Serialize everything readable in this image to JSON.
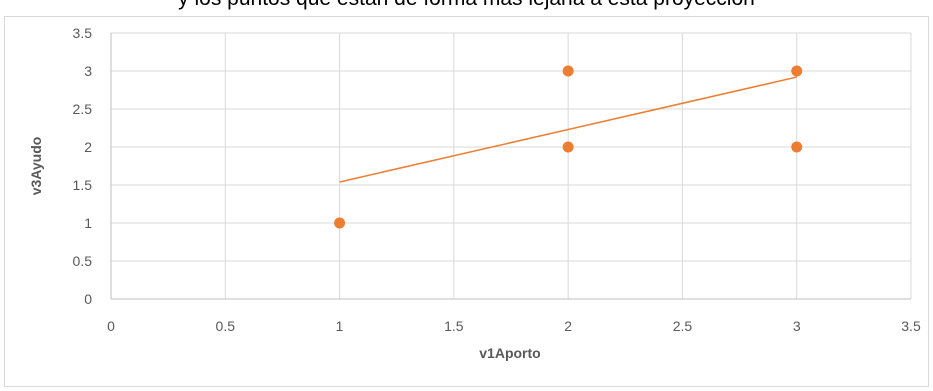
{
  "caption": "y los puntos que están de forma más lejana a esta proyección",
  "chart_data": {
    "type": "scatter",
    "title": "",
    "xlabel": "v1Aporto",
    "ylabel": "v3Ayudo",
    "xlim": [
      0,
      3.5
    ],
    "ylim": [
      0,
      3.5
    ],
    "xticks": [
      "0",
      "0.5",
      "1",
      "1.5",
      "2",
      "2.5",
      "3",
      "3.5"
    ],
    "yticks": [
      "0",
      "0.5",
      "1",
      "1.5",
      "2",
      "2.5",
      "3",
      "3.5"
    ],
    "grid": true,
    "legend": "none",
    "series": [
      {
        "points": [
          {
            "x": 1,
            "y": 1
          },
          {
            "x": 2,
            "y": 3
          },
          {
            "x": 2,
            "y": 2
          },
          {
            "x": 3,
            "y": 3
          },
          {
            "x": 3,
            "y": 2
          }
        ],
        "color": "#ed7d31"
      }
    ],
    "trendline": {
      "type": "linear",
      "from": {
        "x": 1,
        "y": 1.54
      },
      "to": {
        "x": 3,
        "y": 2.92
      },
      "color": "#ed7d31"
    },
    "colors": {
      "grid": "#d9d9d9",
      "axis": "#bfbfbf",
      "text": "#595959"
    }
  }
}
